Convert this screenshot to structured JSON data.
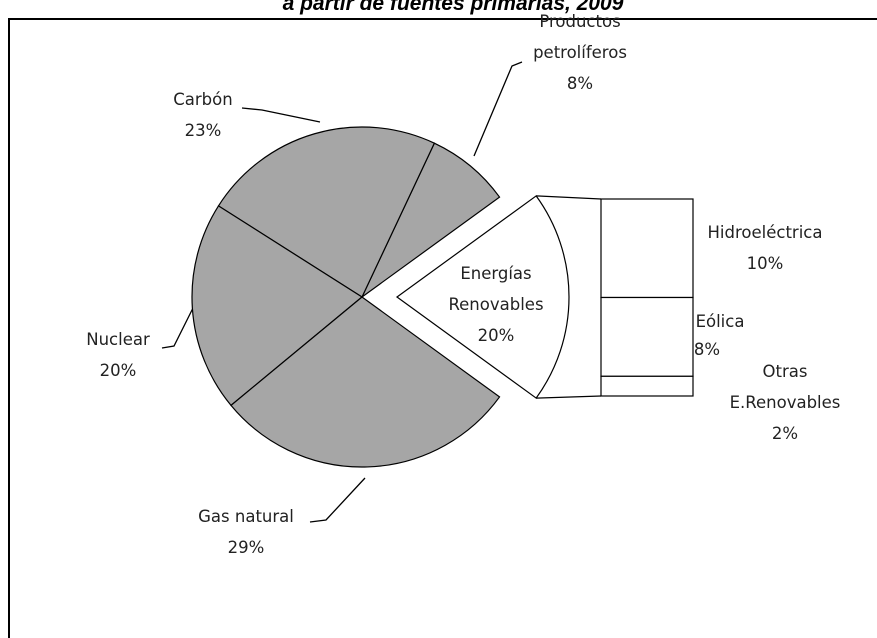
{
  "chart_data": {
    "type": "pie-of-bar",
    "title": "a partir de fuentes  primarias, 2009",
    "categories": [
      "Energías Renovables",
      "Productos petrolíferos",
      "Carbón",
      "Nuclear",
      "Gas natural"
    ],
    "values": [
      20,
      8,
      23,
      20,
      29
    ],
    "value_labels": [
      "20%",
      "8%",
      "23%",
      "20%",
      "29%"
    ],
    "color": "#a6a6a6",
    "split_color": "#ffffff",
    "secondary": {
      "categories": [
        "Hidroeléctrica",
        "Eólica",
        "Otras E.Renovables"
      ],
      "values": [
        10,
        8,
        2
      ],
      "value_labels": [
        "10%",
        "8%",
        "2%"
      ],
      "color": "#ffffff"
    }
  }
}
